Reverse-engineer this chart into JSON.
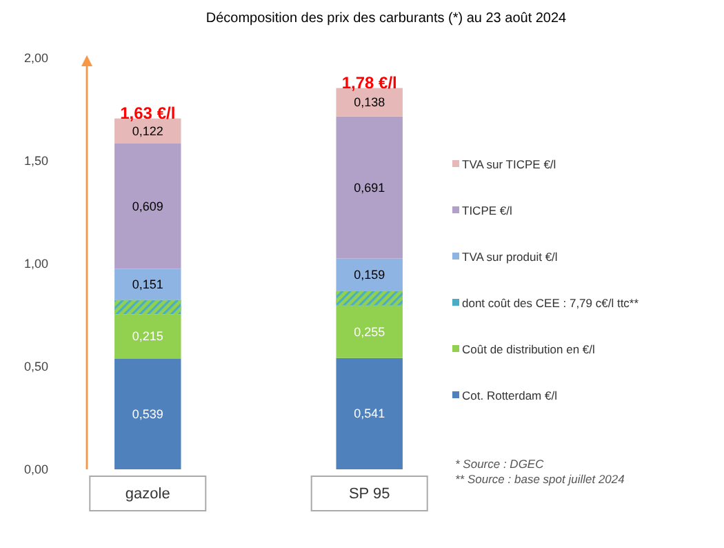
{
  "chart_data": {
    "type": "bar",
    "title": "Décomposition des prix des carburants (*) au 23 août 2024",
    "categories": [
      "gazole",
      "SP 95"
    ],
    "stacked": true,
    "series": [
      {
        "name": "Cot. Rotterdam €/l",
        "color": "#4f81bd",
        "values": [
          0.539,
          0.541
        ],
        "value_labels": [
          "0,539",
          "0,541"
        ]
      },
      {
        "name": "Coût de distribution en €/l",
        "color": "#92d050",
        "values": [
          0.215,
          0.255
        ],
        "value_labels": [
          "0,215",
          "0,255"
        ]
      },
      {
        "name": "dont coût des CEE : 7,79 c€/l ttc**",
        "color": "#4bacc6",
        "values": [
          0.07,
          0.07
        ]
      },
      {
        "name": "TVA sur produit €/l",
        "color": "#8db4e2",
        "values": [
          0.151,
          0.159
        ],
        "value_labels": [
          "0,151",
          "0,159"
        ]
      },
      {
        "name": "TICPE €/l",
        "color": "#b1a0c7",
        "values": [
          0.609,
          0.691
        ],
        "value_labels": [
          "0,609",
          "0,691"
        ]
      },
      {
        "name": "TVA sur TICPE €/l",
        "color": "#e6b9b8",
        "values": [
          0.122,
          0.138
        ],
        "value_labels": [
          "0,122",
          "0,138"
        ]
      }
    ],
    "ylim": [
      0,
      2
    ],
    "yticks": [
      {
        "value": 0,
        "label": "0,00"
      },
      {
        "value": 0.5,
        "label": "0,50"
      },
      {
        "value": 1,
        "label": "1,00"
      },
      {
        "value": 1.5,
        "label": "1,50"
      },
      {
        "value": 2,
        "label": "2,00"
      }
    ],
    "grid": false,
    "legend": "right",
    "annotations": [
      {
        "text": "1,63 €/l",
        "x": "gazole",
        "y": 1.706
      },
      {
        "text": "1,78 €/l",
        "x": "SP 95",
        "y": 1.854
      },
      "* Source : DGEC",
      "** Source : base spot juillet 2024"
    ]
  }
}
